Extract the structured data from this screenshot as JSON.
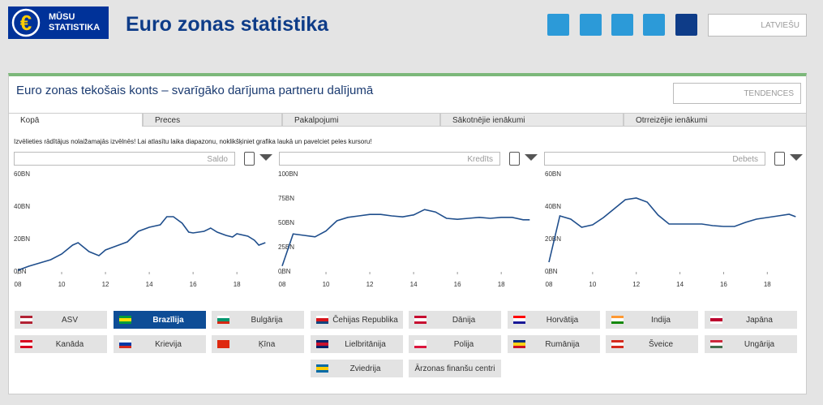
{
  "header": {
    "logo": [
      "MŪSU",
      "STATISTIKA"
    ],
    "title": "Euro zonas statistika",
    "language": "LATVIEŠU"
  },
  "panel": {
    "title": "Euro zonas tekošais konts – svarīgāko darījuma partneru dalījumā",
    "view": "TENDENCES",
    "tabs": [
      "Kopā",
      "Preces",
      "Pakalpojumi",
      "Sākotnējie ienākumi",
      "Otrreizējie ienākumi"
    ],
    "active_tab": 0,
    "instruction": "Izvēlieties rādītājus nolaižamajās izvēlnēs! Lai atlasītu laika diapazonu, noklikšķiniet grafika laukā un pavelciet peles kursoru!"
  },
  "chart_data": [
    {
      "type": "line",
      "selector": "Saldo",
      "color": "#1f4e8c",
      "x": [
        2008,
        2008.5,
        2009,
        2009.5,
        2010,
        2010.5,
        2010.75,
        2011.25,
        2011.7,
        2012,
        2012.5,
        2013,
        2013.5,
        2014,
        2014.5,
        2014.8,
        2015.1,
        2015.5,
        2015.8,
        2016,
        2016.5,
        2016.8,
        2017.1,
        2017.5,
        2017.8,
        2018,
        2018.5,
        2018.8,
        2019,
        2019.3
      ],
      "values": [
        1,
        3.5,
        5.5,
        7.5,
        11,
        16.5,
        18,
        12.5,
        10,
        13.5,
        16,
        18.5,
        25,
        27.5,
        29,
        34,
        34,
        30,
        24.5,
        24,
        25,
        27,
        24.5,
        22.5,
        21.5,
        23.5,
        22,
        19.5,
        16.5,
        18
      ],
      "xlim": [
        2008,
        2019.4
      ],
      "ylim": [
        0,
        60
      ],
      "xticks": [
        {
          "value": 2008,
          "label": "08"
        },
        {
          "value": 2010,
          "label": "10"
        },
        {
          "value": 2012,
          "label": "12"
        },
        {
          "value": 2014,
          "label": "14"
        },
        {
          "value": 2016,
          "label": "16"
        },
        {
          "value": 2018,
          "label": "18"
        }
      ],
      "yticks": [
        {
          "value": 0,
          "label": "0BN"
        },
        {
          "value": 20,
          "label": "20BN"
        },
        {
          "value": 40,
          "label": "40BN"
        },
        {
          "value": 60,
          "label": "60BN"
        }
      ]
    },
    {
      "type": "line",
      "selector": "Kredīts",
      "color": "#1f4e8c",
      "x": [
        2008,
        2008.5,
        2009,
        2009.5,
        2010,
        2010.5,
        2011,
        2011.5,
        2012,
        2012.5,
        2013,
        2013.5,
        2014,
        2014.5,
        2015,
        2015.5,
        2016,
        2016.5,
        2017,
        2017.5,
        2018,
        2018.5,
        2019,
        2019.3
      ],
      "values": [
        6,
        39,
        37.5,
        36,
        42,
        52.5,
        56,
        57.5,
        59,
        59,
        57.5,
        56.5,
        58.5,
        64,
        61.5,
        55,
        54,
        55,
        56,
        55,
        56,
        56,
        53.5,
        53.5
      ],
      "xlim": [
        2008,
        2019.4
      ],
      "ylim": [
        0,
        100
      ],
      "xticks": [
        {
          "value": 2008,
          "label": "08"
        },
        {
          "value": 2010,
          "label": "10"
        },
        {
          "value": 2012,
          "label": "12"
        },
        {
          "value": 2014,
          "label": "14"
        },
        {
          "value": 2016,
          "label": "16"
        },
        {
          "value": 2018,
          "label": "18"
        }
      ],
      "yticks": [
        {
          "value": 0,
          "label": "0BN"
        },
        {
          "value": 25,
          "label": "25BN"
        },
        {
          "value": 50,
          "label": "50BN"
        },
        {
          "value": 75,
          "label": "75BN"
        },
        {
          "value": 100,
          "label": "100BN"
        }
      ]
    },
    {
      "type": "line",
      "selector": "Debets",
      "color": "#1f4e8c",
      "x": [
        2008,
        2008.5,
        2009,
        2009.5,
        2010,
        2010.5,
        2011,
        2011.5,
        2012,
        2012.5,
        2013,
        2013.5,
        2014,
        2014.5,
        2015,
        2015.5,
        2016,
        2016.5,
        2017,
        2017.5,
        2018,
        2018.5,
        2019,
        2019.3
      ],
      "values": [
        6,
        34.5,
        32.5,
        27.5,
        29,
        33.5,
        39,
        44.5,
        45.5,
        43,
        35,
        29.5,
        29.5,
        29.5,
        29.5,
        28.5,
        28,
        28,
        30.5,
        32.5,
        33.5,
        34.5,
        35.5,
        34
      ],
      "xlim": [
        2008,
        2019.4
      ],
      "ylim": [
        0,
        60
      ],
      "xticks": [
        {
          "value": 2008,
          "label": "08"
        },
        {
          "value": 2010,
          "label": "10"
        },
        {
          "value": 2012,
          "label": "12"
        },
        {
          "value": 2014,
          "label": "14"
        },
        {
          "value": 2016,
          "label": "16"
        },
        {
          "value": 2018,
          "label": "18"
        }
      ],
      "yticks": [
        {
          "value": 0,
          "label": "0BN"
        },
        {
          "value": 20,
          "label": "20BN"
        },
        {
          "value": 40,
          "label": "40BN"
        },
        {
          "value": 60,
          "label": "60BN"
        }
      ]
    }
  ],
  "countries": {
    "items": [
      "ASV",
      "Brazīlija",
      "Bulgārija",
      "Čehijas Republika",
      "Dānija",
      "Horvātija",
      "Indija",
      "Japāna",
      "Kanāda",
      "Krievija",
      "Ķīna",
      "Lielbritānija",
      "Polija",
      "Rumānija",
      "Šveice",
      "Ungārija",
      "Zviedrija",
      "Ārzonas finanšu centri"
    ],
    "selected": 1
  }
}
